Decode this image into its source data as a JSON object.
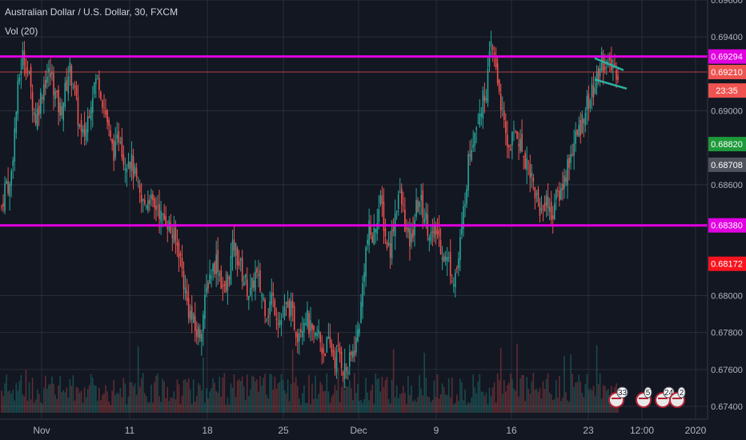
{
  "header": {
    "title": "Australian Dollar / U.S. Dollar, 30, FXCM",
    "indicator": "Vol (20)"
  },
  "colors": {
    "background": "#131722",
    "grid": "#2a2e39",
    "up": "#26a69a",
    "down": "#ef5350",
    "level_line": "#e100e1",
    "triangle": "#2bb3a2",
    "axis_text": "#b2b5be"
  },
  "chart_data": {
    "type": "candlestick",
    "title": "Australian Dollar / U.S. Dollar, 30, FXCM",
    "ylim": [
      0.674,
      0.696
    ],
    "y_ticks": [
      "0.69600",
      "0.69400",
      "0.69000",
      "0.68600",
      "0.68000",
      "0.67800",
      "0.67600",
      "0.67400"
    ],
    "x_ticks": [
      "Nov",
      "11",
      "18",
      "25",
      "Dec",
      "9",
      "16",
      "23",
      "12:00",
      "2020"
    ],
    "grid": true,
    "price_path": [
      [
        0.6848,
        0.6862,
        0.6858,
        0.6887,
        0.6915,
        0.693,
        0.6925,
        0.691,
        0.6895,
        0.6905,
        0.6915,
        0.692,
        0.6918,
        0.6905,
        0.69,
        0.691,
        0.6923,
        0.6915,
        0.6898,
        0.6884,
        0.689,
        0.6905,
        0.6915,
        0.6918,
        0.6905,
        0.6895,
        0.688,
        0.6878,
        0.689,
        0.6872,
        0.6876,
        0.687,
        0.686,
        0.685
      ],
      [
        0.685,
        0.6855,
        0.6845,
        0.685,
        0.684,
        0.6843,
        0.6835,
        0.683,
        0.6825,
        0.681,
        0.6795,
        0.6788,
        0.678,
        0.678,
        0.6793,
        0.681,
        0.6815,
        0.682,
        0.6808,
        0.68,
        0.6815,
        0.6828,
        0.682,
        0.6812,
        0.6805,
        0.68,
        0.6812,
        0.6806,
        0.6798,
        0.679,
        0.68,
        0.6792,
        0.6786,
        0.679,
        0.6795,
        0.6788,
        0.678,
        0.6785,
        0.679,
        0.6782,
        0.6775,
        0.678,
        0.677,
        0.6773,
        0.6772,
        0.6765,
        0.677,
        0.676
      ],
      [
        0.676,
        0.6768,
        0.6775,
        0.679,
        0.682,
        0.6835,
        0.683,
        0.6845,
        0.685,
        0.683,
        0.6825,
        0.6842,
        0.6855,
        0.6848,
        0.6832,
        0.6828,
        0.6845,
        0.6852,
        0.6845,
        0.6838,
        0.683,
        0.6835,
        0.6828,
        0.682,
        0.6818,
        0.681,
        0.6815,
        0.6835,
        0.686,
        0.688,
        0.689,
        0.69,
        0.6905,
        0.6915,
        0.6935,
        0.6925,
        0.691,
        0.689,
        0.688,
        0.6885,
        0.689,
        0.688,
        0.6875,
        0.687,
        0.686,
        0.685,
        0.6845,
        0.6855,
        0.6842,
        0.685,
        0.6855,
        0.686,
        0.687,
        0.6878,
        0.6885,
        0.689,
        0.69,
        0.6905,
        0.691,
        0.6916,
        0.6928,
        0.6926,
        0.6922,
        0.6924,
        0.6921
      ]
    ],
    "levels": [
      {
        "value": 0.69294,
        "label": "0.69294",
        "color": "#e100e1"
      },
      {
        "value": 0.6838,
        "label": "0.68380",
        "color": "#e100e1"
      }
    ],
    "price_tags": [
      {
        "value": 0.69294,
        "label": "0.69294",
        "bg": "#e100e1",
        "fg": "#ffffff"
      },
      {
        "value": 0.6921,
        "label": "0.69210",
        "bg": "#ef5350",
        "fg": "#ffffff"
      },
      {
        "value": 0.6911,
        "label": "23:35",
        "bg": "#ef5350",
        "fg": "#ffffff"
      },
      {
        "value": 0.6882,
        "label": "0.68820",
        "bg": "#1e9a3b",
        "fg": "#ffffff"
      },
      {
        "value": 0.68708,
        "label": "0.68708",
        "bg": "#50535e",
        "fg": "#ffffff"
      },
      {
        "value": 0.6838,
        "label": "0.68380",
        "bg": "#e100e1",
        "fg": "#ffffff"
      },
      {
        "value": 0.68172,
        "label": "0.68172",
        "bg": "#f7141e",
        "fg": "#ffffff"
      }
    ],
    "event_badges": [
      "3",
      "3",
      "5",
      "24",
      "2"
    ]
  }
}
